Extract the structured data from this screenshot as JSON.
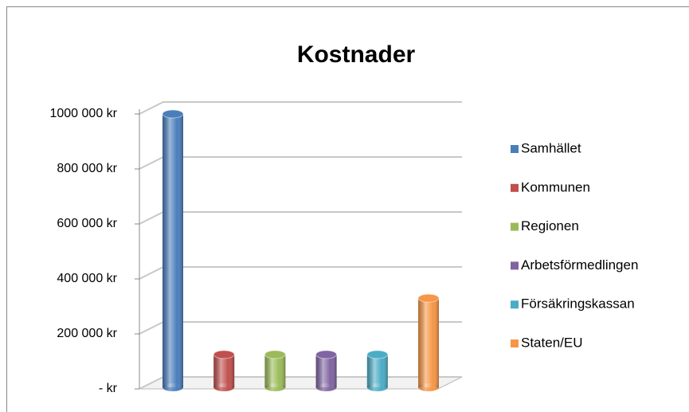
{
  "chart_data": {
    "type": "bar",
    "title": "Kostnader",
    "series": [
      {
        "name": "Samhället",
        "color": "#4a7ebb",
        "values": [
          1000000
        ]
      },
      {
        "name": "Kommunen",
        "color": "#c0504d",
        "values": [
          125000
        ]
      },
      {
        "name": "Regionen",
        "color": "#9bbb59",
        "values": [
          125000
        ]
      },
      {
        "name": "Arbetsförmedlingen",
        "color": "#8064a2",
        "values": [
          125000
        ]
      },
      {
        "name": "Försäkringskassan",
        "color": "#4bacc6",
        "values": [
          125000
        ]
      },
      {
        "name": "Staten/EU",
        "color": "#f79646",
        "values": [
          330000
        ]
      }
    ],
    "ylim": [
      0,
      1000000
    ],
    "yticks": [
      {
        "value": 0,
        "label": "-   kr"
      },
      {
        "value": 200000,
        "label": "200 000 kr"
      },
      {
        "value": 400000,
        "label": "400 000 kr"
      },
      {
        "value": 600000,
        "label": "600 000 kr"
      },
      {
        "value": 800000,
        "label": "800 000 kr"
      },
      {
        "value": 1000000,
        "label": "1000 000 kr"
      }
    ],
    "grid": true,
    "legend": "right"
  }
}
